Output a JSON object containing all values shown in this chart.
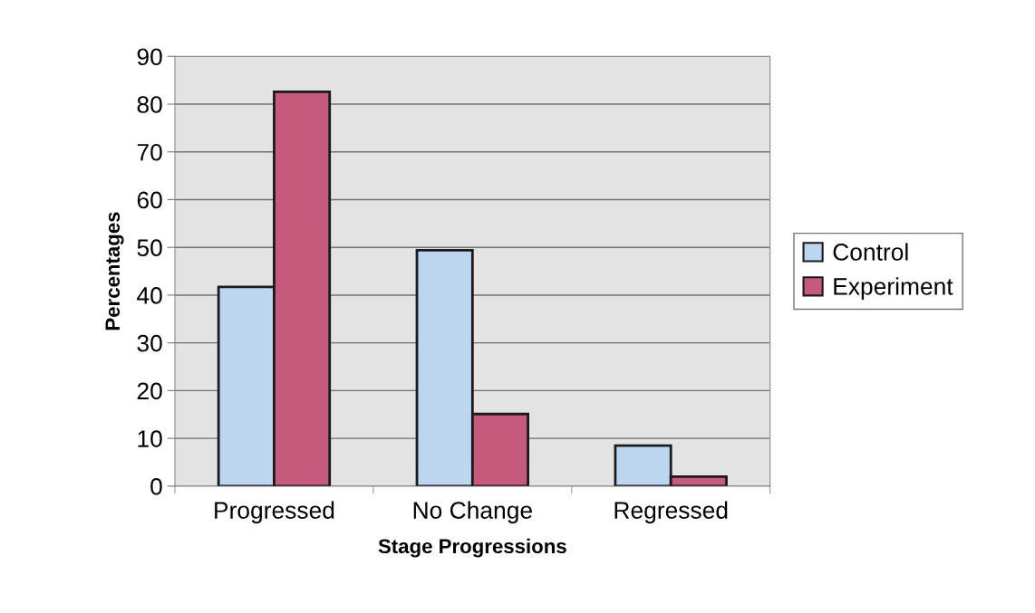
{
  "chart_data": {
    "type": "bar",
    "xlabel": "Stage Progressions",
    "ylabel": "Percentages",
    "categories": [
      "Progressed",
      "No Change",
      "Regressed"
    ],
    "series": [
      {
        "name": "Control",
        "color": "#bcd6f0",
        "values": [
          41.7,
          49.4,
          8.5
        ]
      },
      {
        "name": "Experiment",
        "color": "#c65a7c",
        "values": [
          82.6,
          15.1,
          2.0
        ]
      }
    ],
    "ylim": [
      0,
      90
    ],
    "yticks": [
      0,
      10,
      20,
      30,
      40,
      50,
      60,
      70,
      80,
      90
    ],
    "grid": "y",
    "legend": "right"
  }
}
